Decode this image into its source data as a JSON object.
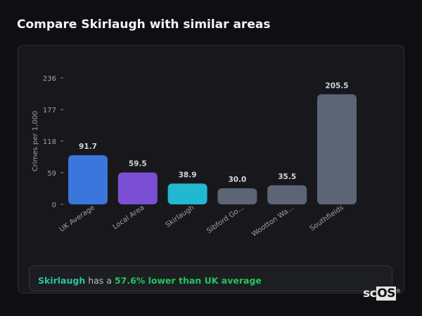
{
  "header": {
    "title": "Compare Skirlaugh with similar areas"
  },
  "chart_data": {
    "type": "bar",
    "categories": [
      "UK Average",
      "Local Area",
      "Skirlaugh",
      "Sibford Go...",
      "Wootton Wa...",
      "Southfields"
    ],
    "values": [
      91.7,
      59.5,
      38.9,
      30.0,
      35.5,
      205.5
    ],
    "value_labels": [
      "91.7",
      "59.5",
      "38.9",
      "30.0",
      "35.5",
      "205.5"
    ],
    "colors": [
      "#3b76dc",
      "#7b4fd4",
      "#22b8cf",
      "#5b6576",
      "#5b6576",
      "#5b6576"
    ],
    "ylabel": "Crimes per 1,000",
    "xlabel": "",
    "ylim": [
      0,
      236
    ],
    "yticks": [
      0,
      59,
      118,
      177,
      236
    ],
    "grid": true
  },
  "summary": {
    "area": "Skirlaugh",
    "middle": " has a ",
    "comparison": "57.6% lower than UK average"
  },
  "logo": {
    "text_sc": "sc",
    "text_os": "OS",
    "mark": "®"
  }
}
